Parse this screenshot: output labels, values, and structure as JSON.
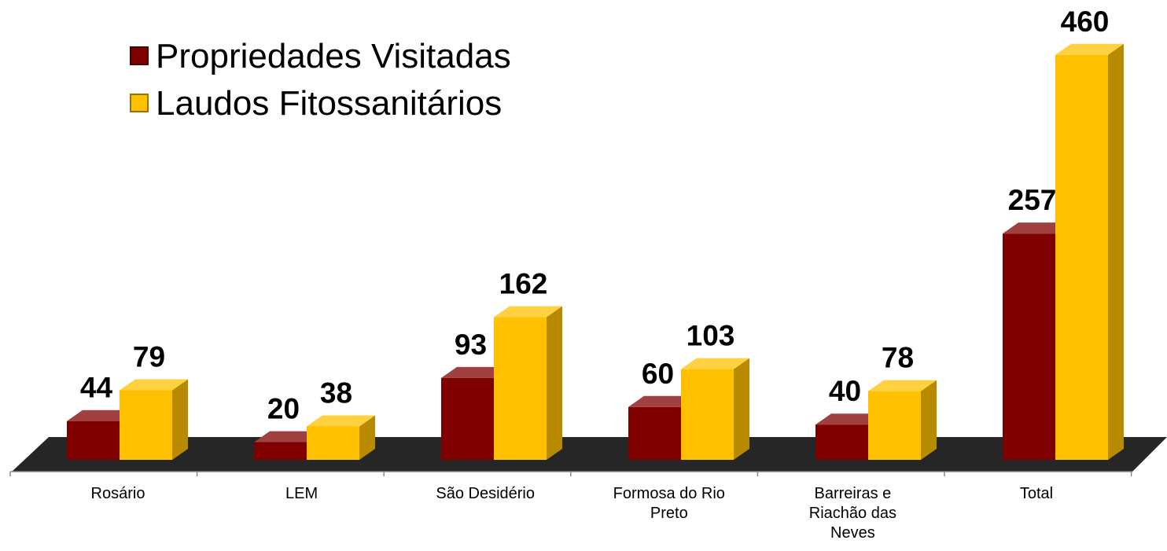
{
  "chart_data": {
    "type": "bar3d",
    "categories": [
      "Rosário",
      "LEM",
      "São Desidério",
      "Formosa do Rio Preto",
      "Barreiras e Riachão das Neves",
      "Total"
    ],
    "series": [
      {
        "name": "Propriedades Visitadas",
        "color": "#800000",
        "values": [
          44,
          20,
          93,
          60,
          40,
          257
        ]
      },
      {
        "name": "Laudos Fitossanitários",
        "color": "#ffc000",
        "values": [
          79,
          38,
          162,
          103,
          78,
          460
        ]
      }
    ],
    "legend": "top-left"
  }
}
